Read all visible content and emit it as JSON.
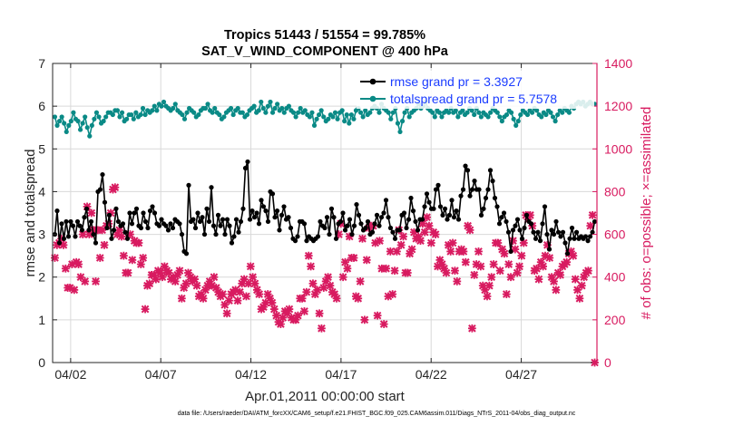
{
  "chart_data": {
    "type": "line",
    "title_line1": "Tropics 51443 / 51554 = 99.785%",
    "title_line2": "SAT_V_WIND_COMPONENT @ 400 hPa",
    "xlabel": "Apr.01,2011 00:00:00 start",
    "ylabel_left": "rmse and totalspread",
    "ylabel_right": "# of obs: o=possible; ×=assimilated",
    "footer": "data file: /Users/raeder/DAI/ATM_forcXX/CAM6_setup/f.e21.FHIST_BGC.f09_025.CAM6assim.011/Diags_NTrS_2011-04/obs_diag_output.nc",
    "xlim": [
      1.0,
      31.2
    ],
    "ylim_left": [
      0,
      7
    ],
    "ylim_right": [
      0,
      1400
    ],
    "x_ticks": [
      2,
      7,
      12,
      17,
      22,
      27
    ],
    "x_tick_labels": [
      "04/02",
      "04/07",
      "04/12",
      "04/17",
      "04/22",
      "04/27"
    ],
    "y_ticks_left": [
      0,
      1,
      2,
      3,
      4,
      5,
      6,
      7
    ],
    "y_tick_labels_left": [
      "0",
      "1",
      "2",
      "3",
      "4",
      "5",
      "6",
      "7"
    ],
    "y_ticks_right": [
      0,
      200,
      400,
      600,
      800,
      1000,
      1200,
      1400
    ],
    "y_tick_labels_right": [
      "0",
      "200",
      "400",
      "600",
      "800",
      "1000",
      "1200",
      "1400"
    ],
    "colors": {
      "rmse": "#000000",
      "spread": "#0a8a86",
      "obs": "#d81b60",
      "legend_text": "#1a3cff",
      "axes": "#262626"
    },
    "series": [
      {
        "name": "rmse",
        "legend": "rmse grand pr = 3.3927",
        "values": [
          3.0,
          3.55,
          2.8,
          3.25,
          2.9,
          3.3,
          2.95,
          3.3,
          3.2,
          2.95,
          3.3,
          3.2,
          3.1,
          3.4,
          3.6,
          3.1,
          3.3,
          3.0,
          2.8,
          4.0,
          4.05,
          4.4,
          3.75,
          3.15,
          3.45,
          2.9,
          3.1,
          3.6,
          3.3,
          3.2,
          3.25,
          3.05,
          2.9,
          3.5,
          3.25,
          3.5,
          3.6,
          3.2,
          3.15,
          3.5,
          3.3,
          3.15,
          3.55,
          3.65,
          3.5,
          3.25,
          3.2,
          3.35,
          3.25,
          3.2,
          3.1,
          3.25,
          3.15,
          3.35,
          3.3,
          3.25,
          3.0,
          2.6,
          2.55,
          4.15,
          3.3,
          3.35,
          3.15,
          3.5,
          3.3,
          3.4,
          3.0,
          3.6,
          3.3,
          4.1,
          3.2,
          3.0,
          3.45,
          3.2,
          3.35,
          3.0,
          3.35,
          3.2,
          2.8,
          2.95,
          3.35,
          3.05,
          3.3,
          3.6,
          4.55,
          4.7,
          3.35,
          3.55,
          3.4,
          3.5,
          3.25,
          3.8,
          3.65,
          3.55,
          3.3,
          4.0,
          3.95,
          3.4,
          3.55,
          3.1,
          3.45,
          3.65,
          3.35,
          3.4,
          3.15,
          2.9,
          2.85,
          2.95,
          3.3,
          3.3,
          3.25,
          2.85,
          2.95,
          2.9,
          2.85,
          2.9,
          2.95,
          3.3,
          3.2,
          3.15,
          3.4,
          3.0,
          3.6,
          3.4,
          2.9,
          3.25,
          3.3,
          3.5,
          3.1,
          3.2,
          3.35,
          3.0,
          3.2,
          3.7,
          3.45,
          3.25,
          3.1,
          3.15,
          3.3,
          3.0,
          3.05,
          3.25,
          3.45,
          3.2,
          3.4,
          3.5,
          3.8,
          3.4,
          3.15,
          3.05,
          2.9,
          3.1,
          3.1,
          3.45,
          3.5,
          3.15,
          3.35,
          3.85,
          3.55,
          3.3,
          3.1,
          3.35,
          3.35,
          3.65,
          3.95,
          3.75,
          3.6,
          3.6,
          4.05,
          4.15,
          3.65,
          3.45,
          3.6,
          3.35,
          3.45,
          3.8,
          3.4,
          3.55,
          3.35,
          3.9,
          4.05,
          4.6,
          4.5,
          3.9,
          4.05,
          4.25,
          4.05,
          4.05,
          3.45,
          3.6,
          3.85,
          4.05,
          4.5,
          4.25,
          3.85,
          3.65,
          3.25,
          3.4,
          3.5,
          3.3,
          3.05,
          2.6,
          3.1,
          3.2,
          3.35,
          3.1,
          2.9,
          3.15,
          3.45,
          3.3,
          3.25,
          3.05,
          2.9,
          3.05,
          2.85,
          3.25,
          3.65,
          3.0,
          2.65,
          3.1,
          3.0,
          3.3,
          3.05,
          2.95,
          3.05,
          2.8,
          2.55,
          2.9,
          3.15,
          2.9,
          3.05,
          2.9,
          2.95,
          2.9,
          2.95,
          2.85,
          2.95,
          3.05,
          3.3
        ]
      },
      {
        "name": "spread",
        "legend": "totalspread grand pr = 5.7578",
        "values": [
          5.75,
          5.55,
          5.65,
          5.75,
          5.6,
          5.4,
          5.55,
          5.65,
          5.85,
          5.7,
          5.65,
          5.45,
          5.6,
          5.75,
          5.5,
          5.3,
          5.55,
          5.7,
          5.85,
          5.75,
          5.6,
          5.65,
          5.75,
          5.85,
          5.85,
          5.8,
          5.9,
          5.9,
          5.75,
          5.85,
          5.65,
          5.7,
          5.8,
          5.8,
          5.7,
          5.85,
          5.75,
          5.8,
          5.95,
          5.8,
          5.9,
          5.85,
          5.9,
          6.0,
          5.9,
          6.05,
          6.0,
          6.1,
          6.0,
          5.95,
          5.9,
          5.95,
          6.05,
          5.9,
          5.85,
          5.8,
          5.7,
          5.85,
          5.95,
          5.9,
          5.85,
          5.75,
          5.8,
          5.9,
          5.95,
          5.95,
          6.05,
          5.9,
          5.85,
          5.95,
          5.85,
          5.8,
          5.7,
          5.75,
          5.85,
          5.9,
          5.95,
          5.8,
          5.9,
          5.95,
          5.85,
          5.85,
          5.75,
          5.8,
          5.9,
          5.95,
          6.0,
          5.85,
          5.9,
          6.1,
          5.95,
          5.85,
          6.0,
          6.1,
          5.85,
          5.95,
          6.05,
          5.9,
          5.95,
          5.85,
          5.95,
          6.0,
          5.9,
          5.85,
          5.75,
          5.85,
          5.95,
          5.85,
          5.9,
          5.8,
          5.75,
          5.85,
          5.55,
          5.7,
          5.8,
          5.9,
          5.75,
          5.65,
          5.7,
          5.8,
          5.75,
          5.85,
          5.7,
          5.85,
          5.9,
          5.65,
          5.8,
          5.6,
          5.8,
          5.7,
          5.9,
          5.95,
          5.85,
          5.75,
          5.9,
          5.8,
          5.85,
          5.95,
          6.0,
          5.95,
          5.85,
          6.05,
          5.95,
          5.9,
          5.85,
          5.7,
          5.85,
          5.95,
          5.6,
          5.4,
          5.65,
          5.85,
          5.95,
          5.75,
          5.85,
          5.9,
          5.95,
          6.05,
          5.95,
          6.0,
          6.1,
          5.95,
          5.9,
          5.85,
          5.75,
          5.9,
          5.85,
          5.75,
          5.85,
          5.9,
          5.85,
          5.95,
          5.85,
          5.9,
          5.75,
          5.85,
          5.9,
          5.8,
          5.85,
          5.95,
          5.9,
          5.8,
          5.95,
          5.85,
          5.75,
          5.85,
          5.8,
          5.75,
          5.85,
          5.95,
          5.9,
          5.85,
          5.75,
          5.65,
          5.75,
          5.8,
          5.9,
          5.85,
          5.7,
          5.55,
          5.65,
          5.8,
          5.9,
          5.85,
          5.8,
          5.9,
          5.85,
          5.95,
          5.9,
          5.8,
          5.75,
          5.85,
          5.8,
          5.9,
          5.85,
          5.75,
          5.65,
          5.8,
          5.9,
          5.85,
          5.95,
          5.9,
          5.85,
          6.0,
          5.95,
          6.05,
          6.1,
          6.05,
          6.1,
          6.0,
          6.05,
          6.1,
          6.05,
          6.05
        ]
      },
      {
        "name": "obs_assimilated",
        "values": [
          490,
          550,
          560,
          580,
          550,
          440,
          350,
          350,
          460,
          340,
          470,
          460,
          400,
          600,
          380,
          730,
          600,
          700,
          620,
          380,
          620,
          490,
          620,
          550,
          640,
          650,
          700,
          810,
          820,
          600,
          620,
          590,
          500,
          420,
          420,
          600,
          480,
          570,
          560,
          560,
          460,
          490,
          250,
          360,
          370,
          410,
          410,
          390,
          430,
          420,
          400,
          450,
          430,
          420,
          390,
          400,
          380,
          410,
          430,
          300,
          350,
          370,
          420,
          400,
          380,
          390,
          360,
          310,
          320,
          300,
          340,
          360,
          380,
          360,
          400,
          350,
          330,
          310,
          320,
          270,
          230,
          290,
          320,
          330,
          340,
          290,
          330,
          370,
          390,
          310,
          370,
          450,
          400,
          370,
          340,
          320,
          250,
          260,
          280,
          320,
          300,
          280,
          250,
          220,
          190,
          180,
          210,
          240,
          230,
          250,
          210,
          200,
          200,
          220,
          300,
          300,
          240,
          330,
          500,
          450,
          370,
          320,
          340,
          230,
          160,
          350,
          380,
          400,
          360,
          330,
          320,
          300,
          600,
          650,
          400,
          470,
          440,
          590,
          490,
          490,
          310,
          300,
          380,
          580,
          200,
          480,
          630,
          640,
          640,
          560,
          220,
          570,
          440,
          180,
          440,
          310,
          520,
          320,
          430,
          520,
          620,
          550,
          590,
          420,
          420,
          510,
          530,
          610,
          580,
          590,
          570,
          650,
          610,
          680,
          640,
          560,
          610,
          600,
          450,
          480,
          460,
          440,
          420,
          550,
          520,
          560,
          430,
          380,
          520,
          530,
          520,
          470,
          640,
          620,
          160,
          410,
          460,
          520,
          450,
          360,
          340,
          310,
          360,
          400,
          460,
          560,
          560,
          430,
          530,
          510,
          320,
          460,
          400,
          570,
          530,
          420,
          450,
          500,
          560,
          690,
          670,
          690,
          640,
          430,
          440,
          390,
          470,
          450,
          500,
          550,
          490,
          400,
          380,
          340,
          420,
          410,
          450,
          460,
          470,
          510,
          520,
          500,
          390,
          340,
          300,
          360,
          400,
          420,
          430,
          640,
          690,
          0
        ]
      }
    ]
  }
}
